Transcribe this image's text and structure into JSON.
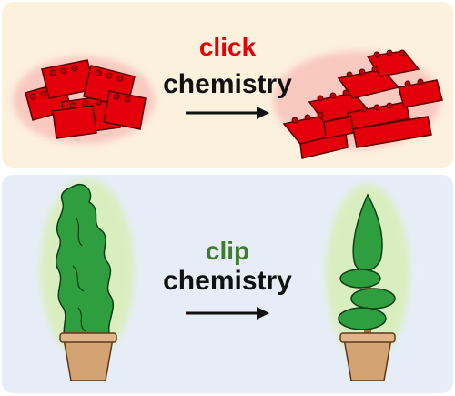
{
  "top_panel": {
    "keyword": "click",
    "subtitle": "chemistry",
    "keyword_color": "#e3000b",
    "illustrations": [
      "scattered-bricks",
      "assembled-brick-wall"
    ]
  },
  "bottom_panel": {
    "keyword": "clip",
    "subtitle": "chemistry",
    "keyword_color": "#3f7d2e",
    "illustrations": [
      "untrimmed-shrub-in-pot",
      "spiral-topiary-in-pot"
    ]
  }
}
